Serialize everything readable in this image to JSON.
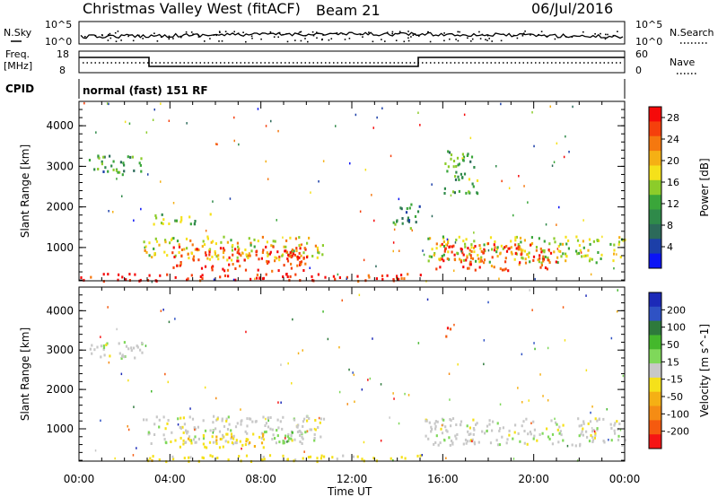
{
  "header": {
    "station": "Christmas Valley West (fitACF)",
    "beam": "Beam 21",
    "date": "06/Jul/2016"
  },
  "noise_panel": {
    "left_label": "N.Sky",
    "right_label": "N.Search",
    "left_ticks": [
      "10^5",
      "10^0"
    ],
    "right_ticks": [
      "10^5",
      "10^0"
    ]
  },
  "freq_panel": {
    "left_label_1": "Freq.",
    "left_label_2": "[MHz]",
    "left_ticks": [
      "18",
      "8"
    ],
    "right_label": "Nave",
    "right_ticks": [
      "60",
      "0"
    ]
  },
  "cpid": {
    "label": "CPID",
    "mode": "normal (fast) 151 RF"
  },
  "colors": {
    "power": [
      "#0b14f5",
      "#1c3fa8",
      "#2c6a5a",
      "#2f8a4a",
      "#3aa63a",
      "#8ccc2a",
      "#f5e11a",
      "#f5b014",
      "#f5780f",
      "#f5400c",
      "#f50a0a"
    ],
    "velocity": [
      "#1c2ab8",
      "#2f52c4",
      "#2e7a3c",
      "#44b82c",
      "#7fd85a",
      "#c8c8c8",
      "#f5e11a",
      "#f5b014",
      "#f58c14",
      "#f55a0f",
      "#f51414"
    ]
  },
  "chart_data": [
    {
      "type": "heatmap",
      "panel": "power",
      "ylabel": "Slant Range [km]",
      "xlabel": "",
      "x_ticks": [
        "00:00",
        "04:00",
        "08:00",
        "12:00",
        "16:00",
        "20:00",
        "00:00"
      ],
      "xlim": [
        0,
        24
      ],
      "ylim": [
        180,
        4600
      ],
      "y_ticks": [
        1000,
        2000,
        3000,
        4000
      ],
      "colorbar_label": "Power [dB]",
      "colorbar_ticks": [
        4,
        8,
        12,
        16,
        20,
        24,
        28
      ],
      "clim": [
        0,
        30
      ],
      "regions": [
        {
          "t0": 0.4,
          "t1": 2.8,
          "r0": 2800,
          "r1": 3300,
          "value": 10
        },
        {
          "t0": 2.8,
          "t1": 10.8,
          "r0": 700,
          "r1": 1300,
          "value": 18
        },
        {
          "t0": 4.0,
          "t1": 10.0,
          "r0": 450,
          "r1": 1050,
          "value": 27
        },
        {
          "t0": 3.2,
          "t1": 6.0,
          "r0": 1600,
          "r1": 1850,
          "value": 14
        },
        {
          "t0": 0.0,
          "t1": 15.0,
          "r0": 200,
          "r1": 380,
          "value": 28
        },
        {
          "t0": 15.2,
          "t1": 24.0,
          "r0": 650,
          "r1": 1300,
          "value": 16
        },
        {
          "t0": 15.6,
          "t1": 21.0,
          "r0": 450,
          "r1": 1150,
          "value": 26
        },
        {
          "t0": 13.8,
          "t1": 15.0,
          "r0": 1500,
          "r1": 2100,
          "value": 9
        },
        {
          "t0": 16.0,
          "t1": 17.5,
          "r0": 2300,
          "r1": 3400,
          "value": 12
        }
      ]
    },
    {
      "type": "heatmap",
      "panel": "velocity",
      "ylabel": "Slant Range [km]",
      "xlabel": "Time UT",
      "x_ticks": [
        "00:00",
        "04:00",
        "08:00",
        "12:00",
        "16:00",
        "20:00",
        "00:00"
      ],
      "xlim": [
        0,
        24
      ],
      "ylim": [
        180,
        4600
      ],
      "y_ticks": [
        1000,
        2000,
        3000,
        4000
      ],
      "colorbar_label": "Velocity [m s^-1]",
      "colorbar_ticks": [
        200,
        100,
        50,
        15,
        -15,
        -50,
        -100,
        -200
      ],
      "clim": [
        -250,
        250
      ],
      "regions": [
        {
          "t0": 0.4,
          "t1": 2.8,
          "r0": 2800,
          "r1": 3300,
          "value": 0
        },
        {
          "t0": 2.8,
          "t1": 10.8,
          "r0": 650,
          "r1": 1350,
          "value": 0
        },
        {
          "t0": 4.2,
          "t1": 8.5,
          "r0": 550,
          "r1": 900,
          "value": -60
        },
        {
          "t0": 8.0,
          "t1": 9.8,
          "r0": 650,
          "r1": 1000,
          "value": 40
        },
        {
          "t0": 3.0,
          "t1": 15.0,
          "r0": 200,
          "r1": 360,
          "value": -40
        },
        {
          "t0": 15.2,
          "t1": 24.0,
          "r0": 600,
          "r1": 1300,
          "value": 0
        },
        {
          "t0": 16.0,
          "t1": 16.4,
          "r0": 3350,
          "r1": 3600,
          "value": -220
        }
      ]
    }
  ]
}
